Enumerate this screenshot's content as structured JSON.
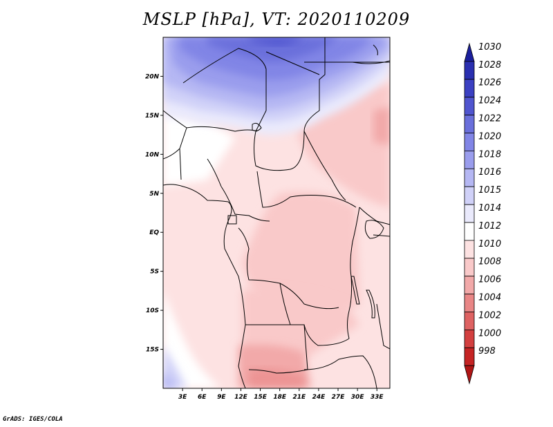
{
  "title": "MSLP [hPa], VT: 2020110209",
  "credit": "GrADS: IGES/COLA",
  "map": {
    "lon_range": [
      0,
      35
    ],
    "lat_range": [
      -20,
      25
    ],
    "lat_ticks": [
      {
        "value": 20,
        "label": "20N"
      },
      {
        "value": 15,
        "label": "15N"
      },
      {
        "value": 10,
        "label": "10N"
      },
      {
        "value": 5,
        "label": "5N"
      },
      {
        "value": 0,
        "label": "EQ"
      },
      {
        "value": -5,
        "label": "5S"
      },
      {
        "value": -10,
        "label": "10S"
      },
      {
        "value": -15,
        "label": "15S"
      }
    ],
    "lon_ticks": [
      {
        "value": 3,
        "label": "3E"
      },
      {
        "value": 6,
        "label": "6E"
      },
      {
        "value": 9,
        "label": "9E"
      },
      {
        "value": 12,
        "label": "12E"
      },
      {
        "value": 15,
        "label": "15E"
      },
      {
        "value": 18,
        "label": "18E"
      },
      {
        "value": 21,
        "label": "21E"
      },
      {
        "value": 24,
        "label": "24E"
      },
      {
        "value": 27,
        "label": "27E"
      },
      {
        "value": 30,
        "label": "30E"
      },
      {
        "value": 33,
        "label": "33E"
      }
    ]
  },
  "colorbar": {
    "labels": [
      "1030",
      "1028",
      "1026",
      "1024",
      "1022",
      "1020",
      "1018",
      "1016",
      "1015",
      "1014",
      "1012",
      "1010",
      "1008",
      "1006",
      "1004",
      "1002",
      "1000",
      "998"
    ],
    "colors": [
      "#1b1f9c",
      "#2a2fb0",
      "#3b40c2",
      "#5055cf",
      "#6a6fdb",
      "#8185e6",
      "#9a9ded",
      "#b5b7f3",
      "#d0d1f8",
      "#eaeafc",
      "#ffffff",
      "#fde2e2",
      "#f9c9c9",
      "#f2a9a9",
      "#e98686",
      "#de6262",
      "#d33f3f",
      "#c52424",
      "#b01515"
    ]
  }
}
